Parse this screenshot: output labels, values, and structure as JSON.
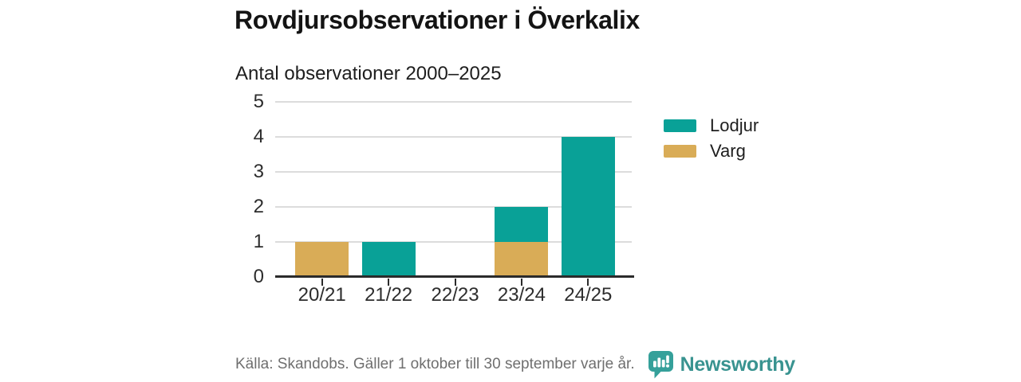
{
  "chart_data": {
    "type": "bar",
    "stacked": true,
    "title": "Rovdjursobservationer i Överkalix",
    "subtitle": "Antal observationer 2000–2025",
    "categories": [
      "20/21",
      "21/22",
      "22/23",
      "23/24",
      "24/25"
    ],
    "series": [
      {
        "name": "Lodjur",
        "color": "#09a197",
        "values": [
          0,
          1,
          0,
          1,
          4
        ]
      },
      {
        "name": "Varg",
        "color": "#d9ac57",
        "values": [
          1,
          0,
          0,
          1,
          0
        ]
      }
    ],
    "stack_order_bottom_to_top": [
      "Varg",
      "Lodjur"
    ],
    "xlabel": "",
    "ylabel": "",
    "ylim": [
      0,
      5
    ],
    "yticks": [
      0,
      1,
      2,
      3,
      4,
      5
    ],
    "grid": true,
    "legend_position": "right"
  },
  "colors": {
    "grid": "#dcdcdc",
    "axis": "#2b2b2b",
    "text": "#1e1e1e",
    "muted_text": "#6f6f6f"
  },
  "footer": {
    "source": "Källa: Skandobs. Gäller 1 oktober till 30 september varje år.",
    "brand": "Newsworthy",
    "brand_color": "#399390",
    "logo_icon": "speech-bubble-bar-chart-icon"
  }
}
